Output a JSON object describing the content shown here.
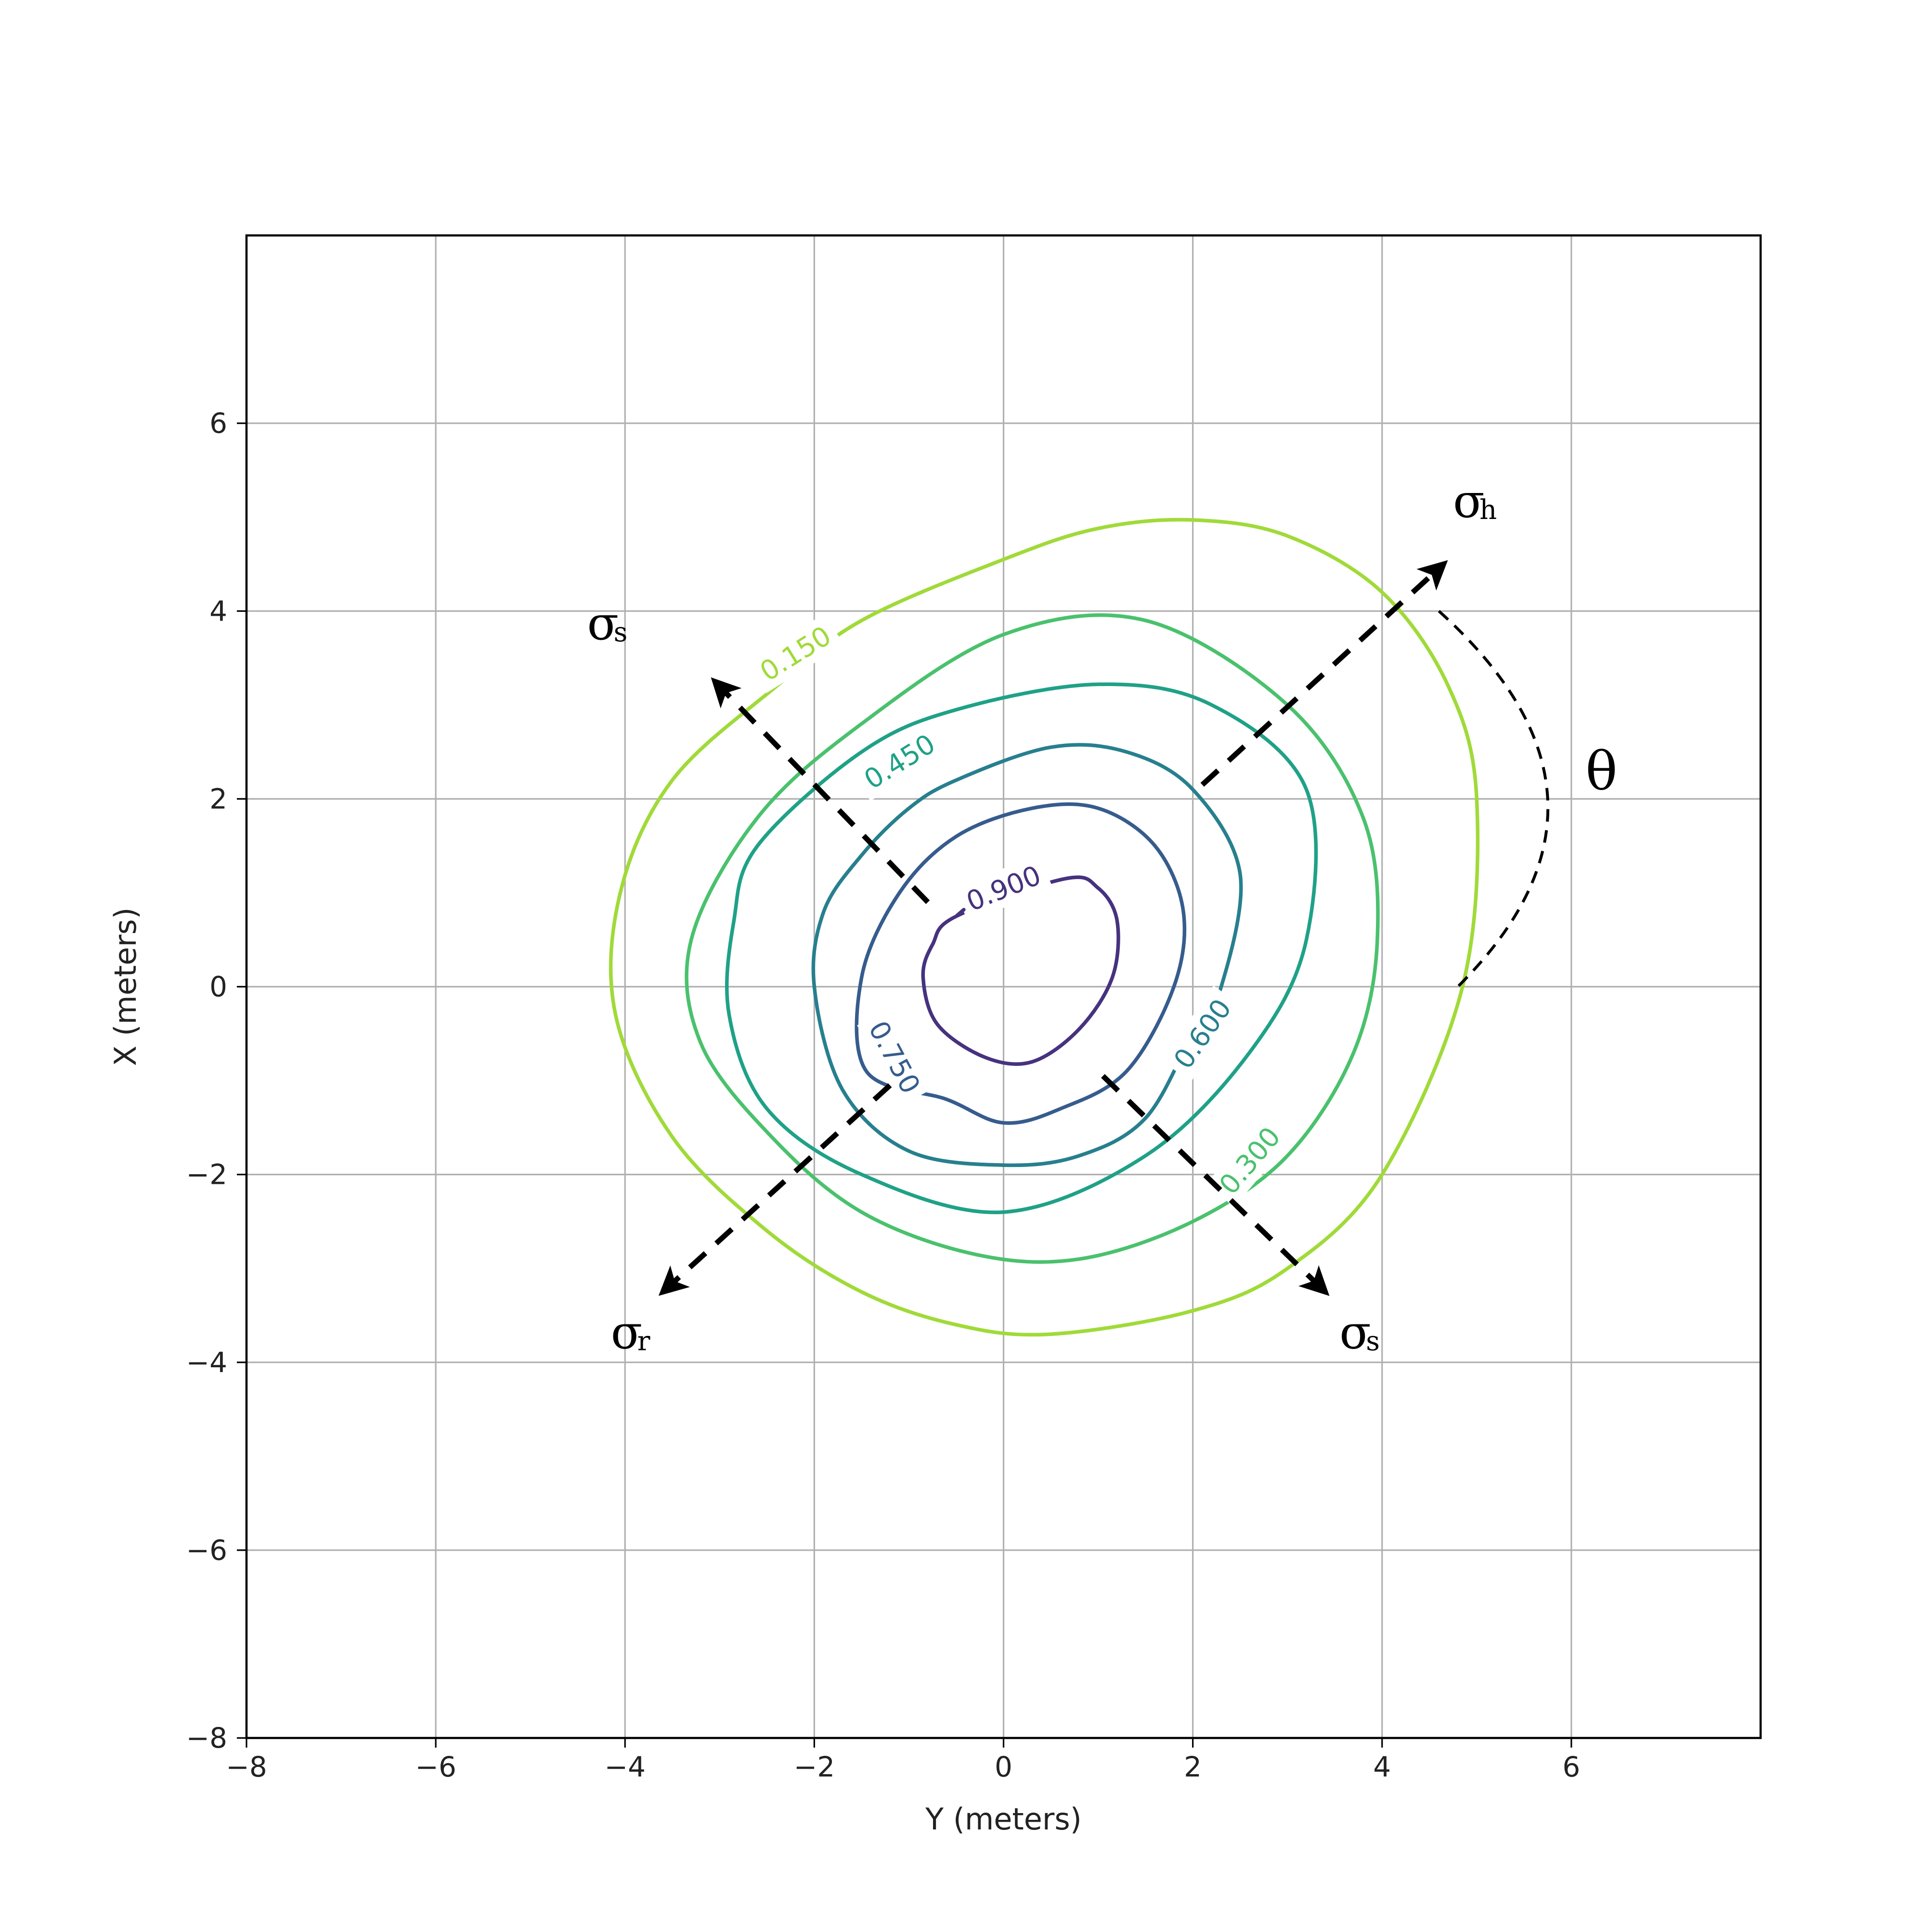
{
  "chart_data": {
    "type": "contour",
    "title": "",
    "xlabel": "Y (meters)",
    "ylabel": "X (meters)",
    "xlim": [
      -8,
      8
    ],
    "ylim": [
      -8,
      8
    ],
    "grid": true,
    "x_ticks": [
      -8,
      -6,
      -4,
      -2,
      0,
      2,
      4,
      6
    ],
    "y_ticks": [
      -8,
      -6,
      -4,
      -2,
      0,
      2,
      4,
      6
    ],
    "x_tick_labels": [
      "−8",
      "−6",
      "−4",
      "−2",
      "0",
      "2",
      "4",
      "6"
    ],
    "y_tick_labels": [
      "−8",
      "−6",
      "−4",
      "−2",
      "0",
      "2",
      "4",
      "6"
    ],
    "contours": [
      {
        "level": 0.15,
        "label": "0.150",
        "color": "#a0da39",
        "points": [
          [
            -1.5,
            3.9
          ],
          [
            0,
            4.55
          ],
          [
            1,
            4.88
          ],
          [
            2,
            4.97
          ],
          [
            3,
            4.8
          ],
          [
            4,
            4.2
          ],
          [
            4.7,
            3.2
          ],
          [
            5,
            2
          ],
          [
            4.85,
            0
          ],
          [
            4,
            -2
          ],
          [
            3,
            -3
          ],
          [
            2,
            -3.45
          ],
          [
            0.5,
            -3.7
          ],
          [
            -0.5,
            -3.6
          ],
          [
            -1.5,
            -3.25
          ],
          [
            -2.5,
            -2.6
          ],
          [
            -3.5,
            -1.6
          ],
          [
            -4.1,
            -0.3
          ],
          [
            -4.05,
            1
          ],
          [
            -3.5,
            2.2
          ],
          [
            -2.4,
            3.2
          ]
        ],
        "label_at": [
          -2.2,
          3.55
        ],
        "label_angle": -32
      },
      {
        "level": 0.3,
        "label": "0.300",
        "color": "#4ac16d",
        "points": [
          [
            -2.45,
            -1.6
          ],
          [
            -1.5,
            -2.4
          ],
          [
            -0.3,
            -2.85
          ],
          [
            0.8,
            -2.9
          ],
          [
            2,
            -2.5
          ],
          [
            3,
            -1.8
          ],
          [
            3.7,
            -0.7
          ],
          [
            3.95,
            0.5
          ],
          [
            3.8,
            1.8
          ],
          [
            3,
            3
          ],
          [
            1.5,
            3.9
          ],
          [
            0,
            3.75
          ],
          [
            -1.5,
            2.8
          ],
          [
            -2.6,
            1.8
          ],
          [
            -3.3,
            0.5
          ],
          [
            -3.2,
            -0.6
          ]
        ],
        "label_at": [
          2.6,
          -1.85
        ],
        "label_angle": -50
      },
      {
        "level": 0.45,
        "label": "0.450",
        "color": "#1fa187",
        "points": [
          [
            -1.5,
            2.5
          ],
          [
            -0.5,
            2.95
          ],
          [
            1,
            3.22
          ],
          [
            2.2,
            3
          ],
          [
            3.2,
            2.1
          ],
          [
            3.2,
            0.5
          ],
          [
            2.6,
            -0.7
          ],
          [
            1.5,
            -1.8
          ],
          [
            0,
            -2.4
          ],
          [
            -1.5,
            -2
          ],
          [
            -2.5,
            -1.3
          ],
          [
            -2.9,
            -0.3
          ],
          [
            -2.85,
            0.7
          ],
          [
            -2.6,
            1.5
          ]
        ],
        "label_at": [
          -1.1,
          2.4
        ],
        "label_angle": -32
      },
      {
        "level": 0.6,
        "label": "0.600",
        "color": "#277f8e",
        "points": [
          [
            -0.5,
            2.2
          ],
          [
            0.5,
            2.55
          ],
          [
            1.3,
            2.5
          ],
          [
            2,
            2.1
          ],
          [
            2.5,
            1.2
          ],
          [
            2.3,
            0
          ],
          [
            2,
            -0.5
          ],
          [
            1.5,
            -1.4
          ],
          [
            0.8,
            -1.8
          ],
          [
            0,
            -1.9
          ],
          [
            -1,
            -1.75
          ],
          [
            -1.7,
            -1.1
          ],
          [
            -2,
            0
          ],
          [
            -1.9,
            0.8
          ],
          [
            -1.5,
            1.4
          ],
          [
            -1,
            1.9
          ]
        ],
        "label_at": [
          2.1,
          -0.5
        ],
        "label_angle": -55
      },
      {
        "level": 0.75,
        "label": "0.750",
        "color": "#365c8d",
        "points": [
          [
            -1.45,
            -0.9
          ],
          [
            -1.5,
            0.1
          ],
          [
            -1.1,
            1
          ],
          [
            -0.5,
            1.6
          ],
          [
            0.3,
            1.9
          ],
          [
            1,
            1.9
          ],
          [
            1.6,
            1.5
          ],
          [
            1.9,
            0.8
          ],
          [
            1.8,
            0
          ],
          [
            1.3,
            -0.9
          ],
          [
            0.6,
            -1.3
          ],
          [
            0,
            -1.45
          ],
          [
            -0.6,
            -1.2
          ]
        ],
        "label_at": [
          -1.15,
          -0.75
        ],
        "label_angle": 62
      },
      {
        "level": 0.9,
        "label": "0.900",
        "color": "#46327e",
        "points": [
          [
            0.65,
            1.15
          ],
          [
            1,
            1.05
          ],
          [
            1.2,
            0.7
          ],
          [
            1.15,
            0.1
          ],
          [
            0.8,
            -0.45
          ],
          [
            0.3,
            -0.8
          ],
          [
            -0.2,
            -0.75
          ],
          [
            -0.7,
            -0.4
          ],
          [
            -0.85,
            0.1
          ],
          [
            -0.75,
            0.45
          ],
          [
            -0.5,
            0.75
          ]
        ],
        "label_at": [
          0,
          1.05
        ],
        "label_angle": -22
      },
      {
        "level": 0.9,
        "label": "",
        "color": "#46327e",
        "points": [
          [
            -0.5,
            0.75
          ],
          [
            -0.42,
            0.82
          ]
        ],
        "label_at": null,
        "label_angle": 0
      }
    ],
    "annotations": [
      {
        "type": "arrow",
        "from": [
          2.1,
          2.15
        ],
        "to": [
          4.65,
          4.5
        ]
      },
      {
        "type": "arrow",
        "from": [
          -1.2,
          -1.05
        ],
        "to": [
          -3.6,
          -3.25
        ]
      },
      {
        "type": "arrow",
        "from": [
          -0.8,
          0.9
        ],
        "to": [
          -3.05,
          3.25
        ]
      },
      {
        "type": "arrow",
        "from": [
          1.05,
          -0.95
        ],
        "to": [
          3.4,
          -3.25
        ]
      },
      {
        "type": "arc",
        "from": [
          4.6,
          4.0
        ],
        "through": [
          5.75,
          2.0
        ],
        "to": [
          4.8,
          0.0
        ]
      }
    ],
    "labels": [
      {
        "main": "σ",
        "sub": "h",
        "at": [
          4.75,
          5.0
        ]
      },
      {
        "main": "σ",
        "sub": "s",
        "at": [
          -4.4,
          3.7
        ]
      },
      {
        "main": "σ",
        "sub": "r",
        "at": [
          -4.15,
          -3.85
        ]
      },
      {
        "main": "σ",
        "sub": "s",
        "at": [
          3.55,
          -3.85
        ]
      },
      {
        "main": "θ",
        "sub": "",
        "at": [
          6.15,
          2.1
        ]
      }
    ]
  }
}
